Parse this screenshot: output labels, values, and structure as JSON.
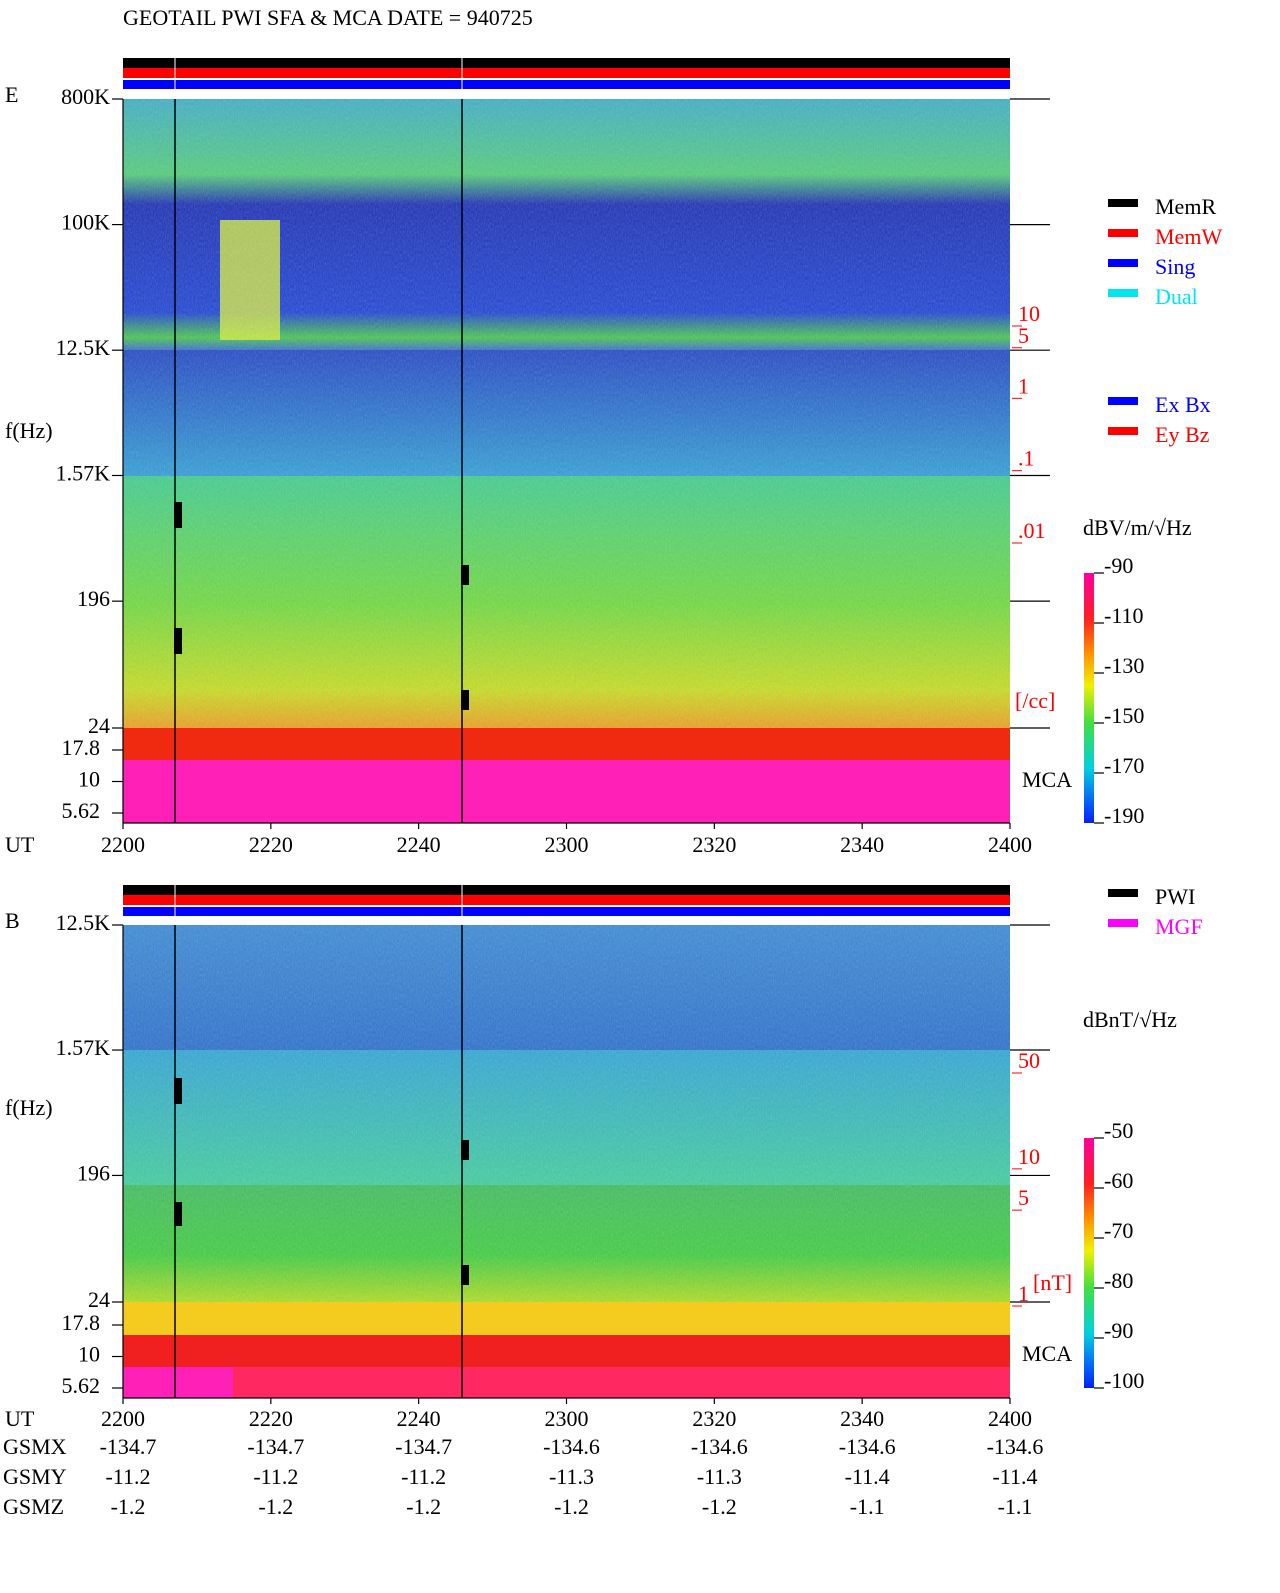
{
  "header": {
    "title": "GEOTAIL  PWI SFA & MCA   DATE = 940725"
  },
  "chart_data": [
    {
      "type": "spectrogram",
      "panel_label": "E",
      "y_label": "f(Hz)",
      "log_scale": true,
      "ylim": [
        24,
        800000
      ],
      "yticks": [
        {
          "value": 800000,
          "label": "800K"
        },
        {
          "value": 100000,
          "label": "100K"
        },
        {
          "value": 12500,
          "label": "12.5K"
        },
        {
          "value": 1570,
          "label": "1.57K"
        },
        196,
        24
      ],
      "mca_label": "MCA",
      "mca_lim": [
        5.62,
        17.8
      ],
      "mca_ticks": [
        17.8,
        10,
        5.62
      ],
      "x_label": "UT",
      "x": [
        "2200",
        "2220",
        "2240",
        "2300",
        "2320",
        "2340",
        "2400"
      ],
      "density_unit": "[/cc]",
      "density_lim": [
        0.01,
        10
      ],
      "density_ticks": [
        10,
        5,
        1,
        {
          "value": 0.1,
          "label": ".1"
        },
        {
          "value": 0.01,
          "label": ".01"
        }
      ],
      "density_color": "#ff0000",
      "legend": [
        {
          "name": "MemR",
          "color": "#000000"
        },
        {
          "name": "MemW",
          "color": "#ff0000"
        },
        {
          "name": "Sing",
          "color": "#0000ff"
        },
        {
          "name": "Dual",
          "color": "#00e5ee"
        }
      ],
      "legend2": [
        {
          "name": "Ex Bx",
          "color": "#0000ff"
        },
        {
          "name": "Ey Bz",
          "color": "#ff0000"
        }
      ],
      "colorbar": {
        "unit": "dBV/m/√Hz",
        "lim": [
          -190,
          -90
        ],
        "ticks": [
          -90,
          -110,
          -130,
          -150,
          -170,
          -190
        ]
      }
    },
    {
      "type": "spectrogram",
      "panel_label": "B",
      "y_label": "f(Hz)",
      "log_scale": true,
      "ylim": [
        24,
        12500
      ],
      "yticks": [
        {
          "value": 12500,
          "label": "12.5K"
        },
        {
          "value": 1570,
          "label": "1.57K"
        },
        196,
        24
      ],
      "mca_label": "MCA",
      "mca_lim": [
        5.62,
        17.8
      ],
      "mca_ticks": [
        17.8,
        10,
        5.62
      ],
      "x_label": "UT",
      "x": [
        "2200",
        "2220",
        "2240",
        "2300",
        "2320",
        "2340",
        "2400"
      ],
      "density_unit": "[nT]",
      "density_lim": [
        1,
        50
      ],
      "density_ticks": [
        50,
        10,
        5,
        1
      ],
      "density_color": "#ff0000",
      "legend": [
        {
          "name": "PWI",
          "color": "#000000"
        },
        {
          "name": "MGF",
          "color": "#ff00ff"
        }
      ],
      "colorbar": {
        "unit": "dBnT/√Hz",
        "lim": [
          -100,
          -50
        ],
        "ticks": [
          -50,
          -60,
          -70,
          -80,
          -90,
          -100
        ]
      }
    }
  ],
  "orbit": {
    "rows": [
      {
        "name": "GSMX",
        "values": [
          -134.7,
          -134.7,
          -134.7,
          -134.6,
          -134.6,
          -134.6,
          -134.6
        ]
      },
      {
        "name": "GSMY",
        "values": [
          -11.2,
          -11.2,
          -11.2,
          -11.3,
          -11.3,
          -11.4,
          -11.4
        ]
      },
      {
        "name": "GSMZ",
        "values": [
          -1.2,
          -1.2,
          -1.2,
          -1.2,
          -1.2,
          -1.1,
          -1.1
        ]
      }
    ]
  }
}
